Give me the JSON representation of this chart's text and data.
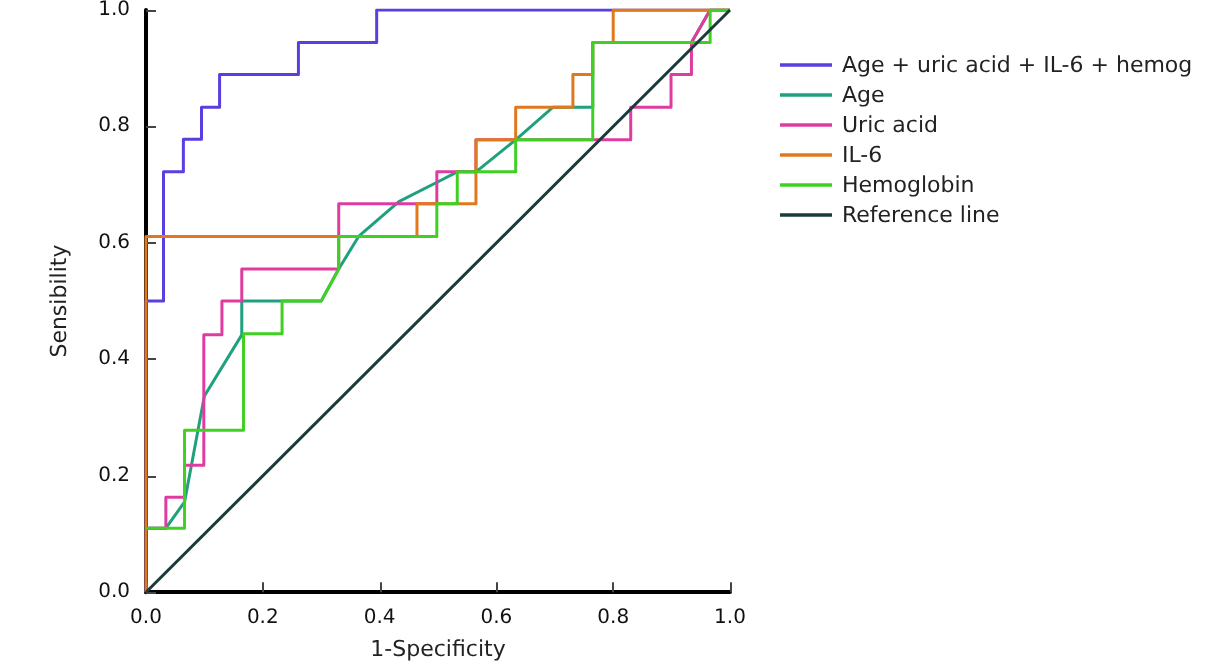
{
  "chart_data": {
    "type": "line",
    "xlabel": "1-Specificity",
    "ylabel": "Sensibility",
    "xlim": [
      0,
      1
    ],
    "ylim": [
      0,
      1
    ],
    "xticks": [
      {
        "value": 0,
        "label": "0.0"
      },
      {
        "value": 0.2,
        "label": "0.2"
      },
      {
        "value": 0.4,
        "label": "0.4"
      },
      {
        "value": 0.6,
        "label": "0.6"
      },
      {
        "value": 0.8,
        "label": "0.8"
      },
      {
        "value": 1,
        "label": "1.0"
      }
    ],
    "yticks": [
      {
        "value": 0,
        "label": "0.0"
      },
      {
        "value": 0.2,
        "label": "0.2"
      },
      {
        "value": 0.4,
        "label": "0.4"
      },
      {
        "value": 0.6,
        "label": "0.6"
      },
      {
        "value": 0.8,
        "label": "0.8"
      },
      {
        "value": 1,
        "label": "1.0"
      }
    ],
    "grid": false,
    "legend": "right",
    "marker": "none",
    "line_style": "solid",
    "series": [
      {
        "name": "Age + uric acid + IL-6 + hemog",
        "color": "#5a3ee0",
        "x": [
          0,
          0,
          0.03,
          0.03,
          0.064,
          0.064,
          0.095,
          0.095,
          0.126,
          0.126,
          0.261,
          0.261,
          0.395,
          0.395,
          1
        ],
        "values": [
          0,
          0.5,
          0.5,
          0.722,
          0.722,
          0.778,
          0.778,
          0.833,
          0.833,
          0.889,
          0.889,
          0.944,
          0.944,
          1,
          1
        ]
      },
      {
        "name": "Age",
        "color": "#1fa07e",
        "x": [
          0,
          0.034,
          0.066,
          0.1,
          0.164,
          0.164,
          0.3,
          0.33,
          0.364,
          0.433,
          0.5,
          0.533,
          0.565,
          0.633,
          0.697,
          0.765,
          0.765,
          0.934,
          0.966
        ],
        "values": [
          0.11,
          0.11,
          0.155,
          0.337,
          0.442,
          0.5,
          0.5,
          0.555,
          0.611,
          0.671,
          0.705,
          0.722,
          0.722,
          0.777,
          0.833,
          0.833,
          0.944,
          0.944,
          1
        ]
      },
      {
        "name": "Uric acid",
        "color": "#e03ca0",
        "x": [
          0,
          0.034,
          0.034,
          0.066,
          0.066,
          0.099,
          0.099,
          0.13,
          0.13,
          0.164,
          0.164,
          0.33,
          0.33,
          0.498,
          0.498,
          0.565,
          0.565,
          0.83,
          0.83,
          0.899,
          0.899,
          0.934,
          0.934,
          0.966,
          1
        ],
        "values": [
          0.11,
          0.11,
          0.163,
          0.163,
          0.218,
          0.218,
          0.442,
          0.442,
          0.5,
          0.5,
          0.555,
          0.555,
          0.667,
          0.667,
          0.722,
          0.722,
          0.777,
          0.777,
          0.833,
          0.833,
          0.889,
          0.889,
          0.944,
          1,
          1
        ]
      },
      {
        "name": "IL-6",
        "color": "#e0781e",
        "x": [
          0,
          0,
          0.464,
          0.464,
          0.565,
          0.565,
          0.633,
          0.633,
          0.731,
          0.731,
          0.765,
          0.765,
          0.8,
          0.8,
          1
        ],
        "values": [
          0,
          0.611,
          0.611,
          0.667,
          0.667,
          0.777,
          0.777,
          0.833,
          0.833,
          0.889,
          0.889,
          0.944,
          0.944,
          1,
          1
        ]
      },
      {
        "name": "Hemoglobin",
        "color": "#40d023",
        "x": [
          0,
          0.066,
          0.066,
          0.167,
          0.167,
          0.233,
          0.233,
          0.3,
          0.33,
          0.33,
          0.498,
          0.498,
          0.533,
          0.533,
          0.633,
          0.633,
          0.765,
          0.765,
          0.966,
          0.966,
          1
        ],
        "values": [
          0.11,
          0.11,
          0.278,
          0.278,
          0.444,
          0.444,
          0.5,
          0.5,
          0.555,
          0.611,
          0.611,
          0.667,
          0.667,
          0.722,
          0.722,
          0.777,
          0.777,
          0.944,
          0.944,
          1,
          1
        ]
      },
      {
        "name": "Reference line",
        "color": "#1a3b3b",
        "x": [
          0,
          1
        ],
        "values": [
          0,
          1
        ]
      }
    ]
  }
}
